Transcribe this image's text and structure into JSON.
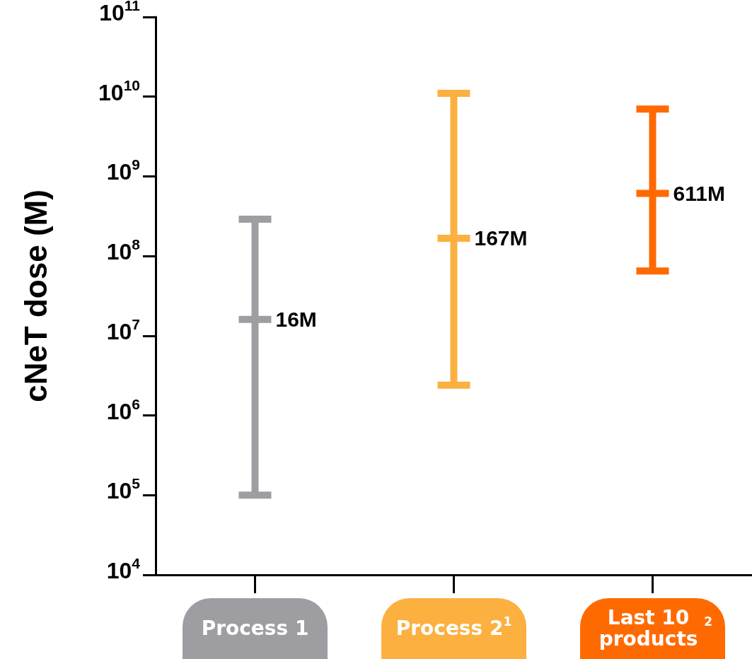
{
  "chart_data": {
    "type": "box",
    "ylabel": "cNeT dose (M)",
    "categories": [
      "Process 1",
      "Process 2$^{1}$",
      "Last 10 products$^{2}$"
    ],
    "boxes": [
      {
        "low": 100000,
        "q1": 16000000,
        "median": 16000000,
        "q3": 16000000,
        "high": 290000000
      },
      {
        "low": 2400000,
        "q1": 167000000,
        "median": 167000000,
        "q3": 167000000,
        "high": 11000000000
      },
      {
        "low": 65000000,
        "q1": 611000000,
        "median": 611000000,
        "q3": 611000000,
        "high": 7000000000
      }
    ],
    "annotations": [
      {
        "text": "16M",
        "x": "Process 1",
        "y": 16000000
      },
      {
        "text": "167M",
        "x": "Process 2$^{1}$",
        "y": 167000000
      },
      {
        "text": "611M",
        "x": "Last 10 products$^{2}$",
        "y": 611000000
      }
    ],
    "colors": [
      "#9d9da2",
      "#fbb040",
      "#ff6a00"
    ],
    "log": "y",
    "ylim": [
      10000,
      100000000000
    ],
    "yticks": [
      {
        "value": 10000,
        "label": "10$^{4}$"
      },
      {
        "value": 100000,
        "label": "10$^{5}$"
      },
      {
        "value": 1000000,
        "label": "10$^{6}$"
      },
      {
        "value": 10000000,
        "label": "10$^{7}$"
      },
      {
        "value": 100000000,
        "label": "10$^{8}$"
      },
      {
        "value": 1000000000,
        "label": "10$^{9}$"
      },
      {
        "value": 10000000000,
        "label": "10$^{10}$"
      },
      {
        "value": 100000000000,
        "label": "10$^{11}$"
      }
    ],
    "grid": false
  }
}
